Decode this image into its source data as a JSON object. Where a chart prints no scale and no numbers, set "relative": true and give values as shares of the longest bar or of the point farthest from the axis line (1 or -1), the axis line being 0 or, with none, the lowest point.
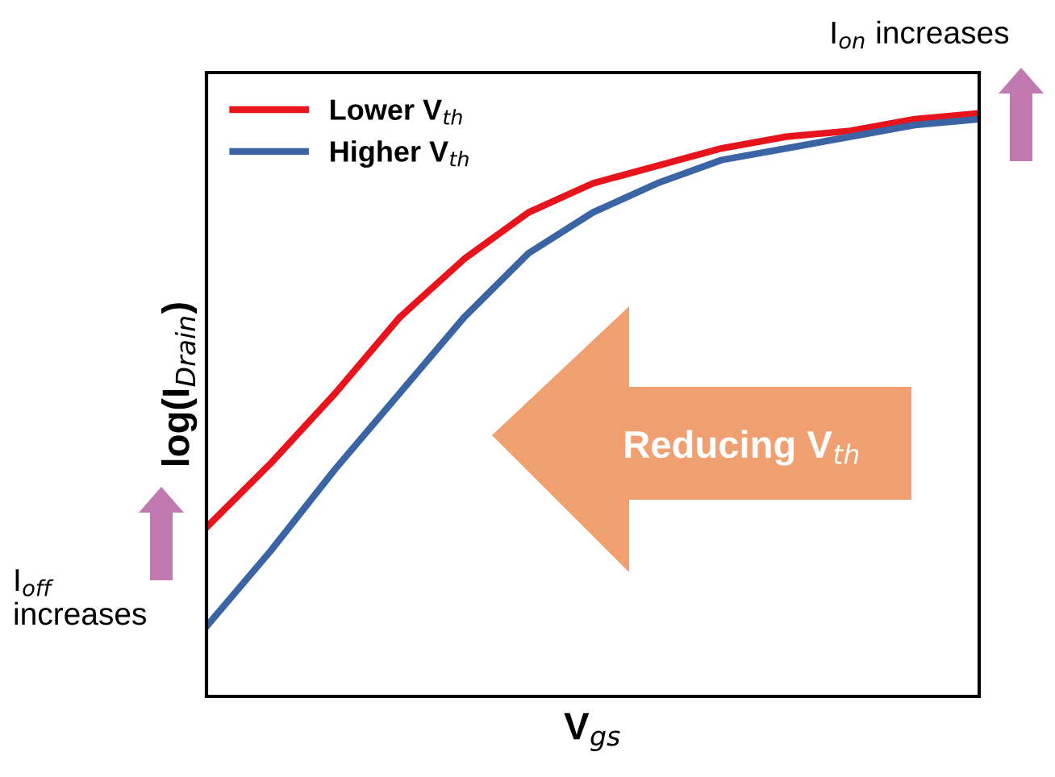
{
  "chart_data": {
    "type": "line",
    "relative": true,
    "xlabel": "V$_{gs}$",
    "ylabel": "log(I$_{Drain}$)",
    "categories": [
      null,
      null,
      null,
      null,
      null,
      null,
      null,
      null,
      null,
      null,
      null,
      null,
      null
    ],
    "series": [
      {
        "name": "Lower V$_{th}$",
        "color": "#e8141c",
        "values": [
          0.29,
          0.4,
          0.52,
          0.65,
          0.75,
          0.83,
          0.88,
          0.91,
          0.94,
          0.96,
          0.97,
          0.99,
          1.0
        ]
      },
      {
        "name": "Higher V$_{th}$",
        "color": "#3a64a4",
        "values": [
          0.12,
          0.25,
          0.39,
          0.52,
          0.65,
          0.76,
          0.83,
          0.88,
          0.92,
          0.94,
          0.96,
          0.98,
          0.99
        ]
      }
    ],
    "legend": "top left",
    "grid": false,
    "annotations": [
      "Reducing V$_{th}$",
      "I$_{on}$ increases",
      "I$_{off}$\nincreases"
    ]
  }
}
